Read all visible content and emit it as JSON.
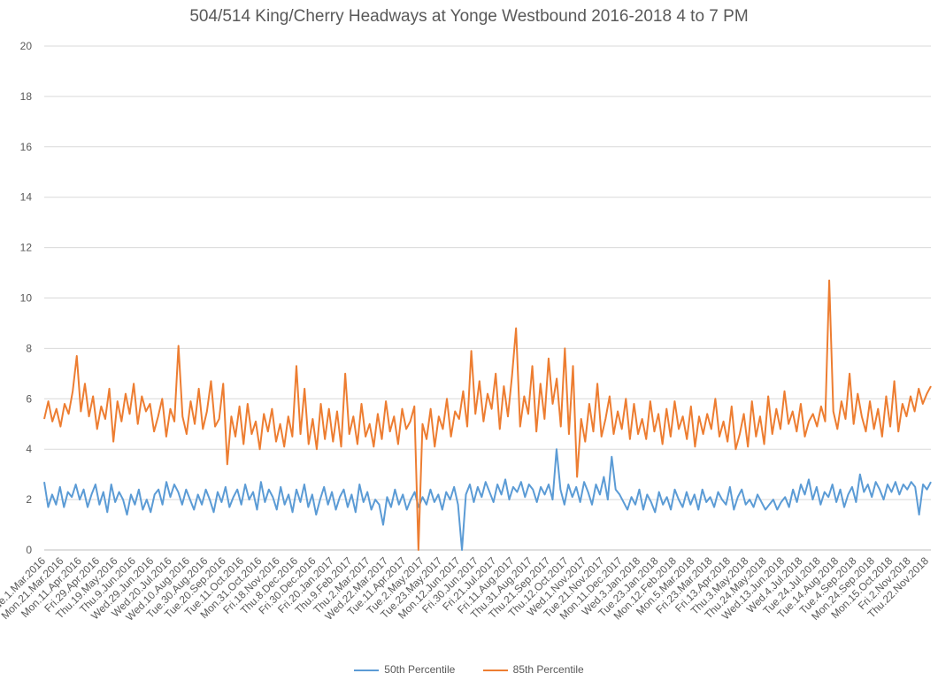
{
  "chart_data": {
    "type": "line",
    "title": "504/514 King/Cherry Headways at Yonge Westbound 2016-2018 4 to 7 PM",
    "xlabel": "",
    "ylabel": "",
    "ylim": [
      0,
      20
    ],
    "yticks": [
      0,
      2,
      4,
      6,
      8,
      10,
      12,
      14,
      16,
      18,
      20
    ],
    "grid": true,
    "legend_position": "bottom",
    "x_start_label": "Tue.1.Mar.2016",
    "x_end_label": "Thu.22.Nov.2018",
    "x_tick_labels": [
      "Tue.1.Mar.2016",
      "Mon.21.Mar.2016",
      "Mon.11.Apr.2016",
      "Fri.29.Apr.2016",
      "Thu.19.May.2016",
      "Thu.9.Jun.2016",
      "Wed.29.Jun.2016",
      "Wed.20.Jul.2016",
      "Wed.10.Aug.2016",
      "Tue.30.Aug.2016",
      "Tue.20.Sep.2016",
      "Tue.11.Oct.2016",
      "Mon.31.Oct.2016",
      "Fri.18.Nov.2016",
      "Thu.8.Dec.2016",
      "Fri.30.Dec.2016",
      "Fri.20.Jan.2017",
      "Thu.9.Feb.2017",
      "Thu.2.Mar.2017",
      "Wed.22.Mar.2017",
      "Tue.11.Apr.2017",
      "Tue.2.May.2017",
      "Tue.23.May.2017",
      "Mon.12.Jun.2017",
      "Fri.30.Jun.2017",
      "Fri.21.Jul.2017",
      "Fri.11.Aug.2017",
      "Thu.31.Aug.2017",
      "Thu.21.Sep.2017",
      "Thu.12.Oct.2017",
      "Wed.1.Nov.2017",
      "Tue.21.Nov.2017",
      "Mon.11.Dec.2017",
      "Wed.3.Jan.2018",
      "Tue.23.Jan.2018",
      "Mon.12.Feb.2018",
      "Mon.5.Mar.2018",
      "Fri.23.Mar.2018",
      "Fri.13.Apr.2018",
      "Thu.3.May.2018",
      "Thu.24.May.2018",
      "Wed.13.Jun.2018",
      "Wed.4.Jul.2018",
      "Tue.24.Jul.2018",
      "Tue.14.Aug.2018",
      "Tue.4.Sep.2018",
      "Mon.24.Sep.2018",
      "Mon.15.Oct.2018",
      "Fri.2.Nov.2018",
      "Thu.22.Nov.2018"
    ],
    "series": [
      {
        "name": "50th Percentile",
        "color": "#5B9BD5",
        "values": [
          2.7,
          1.7,
          2.2,
          1.8,
          2.5,
          1.7,
          2.3,
          2.1,
          2.6,
          2.0,
          2.4,
          1.7,
          2.2,
          2.6,
          1.8,
          2.3,
          1.5,
          2.6,
          1.9,
          2.3,
          2.0,
          1.4,
          2.2,
          1.8,
          2.4,
          1.6,
          2.0,
          1.5,
          2.2,
          2.4,
          1.8,
          2.7,
          2.1,
          2.6,
          2.3,
          1.8,
          2.4,
          2.0,
          1.6,
          2.2,
          1.8,
          2.4,
          2.0,
          1.5,
          2.3,
          1.9,
          2.5,
          1.7,
          2.1,
          2.4,
          1.8,
          2.6,
          2.0,
          2.3,
          1.6,
          2.7,
          1.9,
          2.4,
          2.1,
          1.6,
          2.5,
          1.8,
          2.2,
          1.5,
          2.4,
          1.9,
          2.6,
          1.7,
          2.2,
          1.4,
          2.0,
          2.5,
          1.8,
          2.3,
          1.6,
          2.1,
          2.4,
          1.7,
          2.2,
          1.5,
          2.6,
          1.9,
          2.3,
          1.6,
          2.0,
          1.8,
          1.0,
          2.1,
          1.7,
          2.4,
          1.8,
          2.2,
          1.6,
          2.0,
          2.3,
          1.7,
          2.1,
          1.8,
          2.4,
          1.9,
          2.2,
          1.6,
          2.3,
          2.0,
          2.5,
          1.8,
          0.0,
          2.2,
          2.6,
          1.9,
          2.5,
          2.1,
          2.7,
          2.3,
          1.9,
          2.6,
          2.2,
          2.8,
          2.0,
          2.5,
          2.3,
          2.7,
          2.1,
          2.6,
          2.4,
          1.9,
          2.5,
          2.2,
          2.6,
          2.0,
          4.0,
          2.4,
          1.8,
          2.6,
          2.1,
          2.5,
          1.9,
          2.7,
          2.3,
          1.8,
          2.6,
          2.2,
          2.9,
          2.0,
          3.7,
          2.4,
          2.2,
          1.9,
          1.6,
          2.1,
          1.8,
          2.4,
          1.6,
          2.2,
          1.9,
          1.5,
          2.3,
          1.8,
          2.1,
          1.6,
          2.4,
          2.0,
          1.7,
          2.3,
          1.8,
          2.2,
          1.6,
          2.4,
          1.9,
          2.1,
          1.7,
          2.3,
          2.0,
          1.8,
          2.5,
          1.6,
          2.1,
          2.4,
          1.8,
          2.0,
          1.7,
          2.2,
          1.9,
          1.6,
          1.8,
          2.0,
          1.6,
          1.9,
          2.1,
          1.7,
          2.4,
          1.9,
          2.6,
          2.2,
          2.8,
          2.0,
          2.5,
          1.8,
          2.3,
          2.1,
          2.6,
          1.9,
          2.4,
          1.7,
          2.2,
          2.5,
          1.9,
          3.0,
          2.3,
          2.6,
          2.1,
          2.7,
          2.4,
          2.0,
          2.6,
          2.3,
          2.7,
          2.2,
          2.6,
          2.4,
          2.7,
          2.5,
          1.4,
          2.6,
          2.4,
          2.7
        ]
      },
      {
        "name": "85th Percentile",
        "color": "#ED7D31",
        "values": [
          5.2,
          5.9,
          5.1,
          5.6,
          4.9,
          5.8,
          5.4,
          6.3,
          7.7,
          5.5,
          6.6,
          5.3,
          6.1,
          4.8,
          5.7,
          5.2,
          6.4,
          4.3,
          5.9,
          5.1,
          6.2,
          5.4,
          6.6,
          5.0,
          6.1,
          5.5,
          5.8,
          4.7,
          5.3,
          6.0,
          4.5,
          5.6,
          5.1,
          8.1,
          5.3,
          4.6,
          5.9,
          5.0,
          6.4,
          4.8,
          5.5,
          6.7,
          4.9,
          5.2,
          6.6,
          3.4,
          5.3,
          4.5,
          5.7,
          4.2,
          5.8,
          4.6,
          5.1,
          4.0,
          5.4,
          4.7,
          5.6,
          4.3,
          5.0,
          4.1,
          5.3,
          4.5,
          7.3,
          4.6,
          6.4,
          4.2,
          5.2,
          4.0,
          5.8,
          4.4,
          5.6,
          4.3,
          5.5,
          4.1,
          7.0,
          4.6,
          5.3,
          4.2,
          5.8,
          4.5,
          5.0,
          4.1,
          5.4,
          4.4,
          5.9,
          4.7,
          5.3,
          4.2,
          5.6,
          4.8,
          5.1,
          5.7,
          0.0,
          5.0,
          4.4,
          5.6,
          4.1,
          5.3,
          4.8,
          6.0,
          4.5,
          5.5,
          5.2,
          6.3,
          4.9,
          7.9,
          5.4,
          6.7,
          5.1,
          6.2,
          5.6,
          7.0,
          4.8,
          6.5,
          5.3,
          6.9,
          8.8,
          4.9,
          6.1,
          5.4,
          7.3,
          4.7,
          6.6,
          5.2,
          7.6,
          5.8,
          6.8,
          4.9,
          8.0,
          4.6,
          7.3,
          2.9,
          5.2,
          4.3,
          5.8,
          4.7,
          6.6,
          4.5,
          5.2,
          6.1,
          4.6,
          5.5,
          4.8,
          6.0,
          4.4,
          5.8,
          4.6,
          5.2,
          4.4,
          5.9,
          4.7,
          5.4,
          4.2,
          5.6,
          4.5,
          5.9,
          4.8,
          5.3,
          4.4,
          5.7,
          4.1,
          5.3,
          4.6,
          5.4,
          4.8,
          6.0,
          4.5,
          5.1,
          4.3,
          5.7,
          4.0,
          4.6,
          5.4,
          4.1,
          5.9,
          4.5,
          5.3,
          4.2,
          6.1,
          4.6,
          5.6,
          4.8,
          6.3,
          5.0,
          5.5,
          4.7,
          5.8,
          4.5,
          5.1,
          5.4,
          4.9,
          5.7,
          5.1,
          10.7,
          5.5,
          4.8,
          5.9,
          5.2,
          7.0,
          5.0,
          6.2,
          5.3,
          4.7,
          5.9,
          4.8,
          5.6,
          4.5,
          6.1,
          4.9,
          6.7,
          4.7,
          5.8,
          5.3,
          6.1,
          5.5,
          6.4,
          5.8,
          6.2,
          6.5
        ]
      }
    ]
  }
}
